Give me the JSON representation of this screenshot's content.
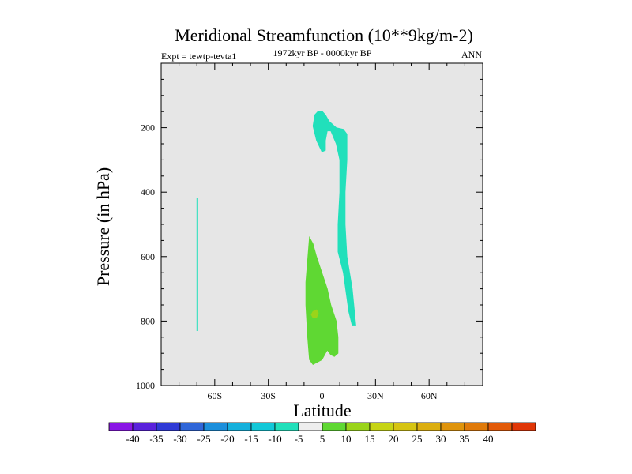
{
  "chart_data": {
    "type": "contour",
    "title": "Meridional Streamfunction (10**9kg/m-2)",
    "subtitle": "1972kyr BP - 0000kyr BP",
    "left_label": "Expt = tewtp-tevta1",
    "right_label": "ANN",
    "xlabel": "Latitude",
    "ylabel": "Pressure (in hPa)",
    "xlim": [
      -90,
      90
    ],
    "ylim": [
      1000,
      0
    ],
    "x_ticks": [
      {
        "value": -60,
        "label": "60S"
      },
      {
        "value": -30,
        "label": "30S"
      },
      {
        "value": 0,
        "label": "0"
      },
      {
        "value": 30,
        "label": "30N"
      },
      {
        "value": 60,
        "label": "60N"
      }
    ],
    "y_ticks": [
      {
        "value": 200,
        "label": "200"
      },
      {
        "value": 400,
        "label": "400"
      },
      {
        "value": 600,
        "label": "600"
      },
      {
        "value": 800,
        "label": "800"
      },
      {
        "value": 1000,
        "label": "1000"
      }
    ],
    "background_color": "#e6e6e6",
    "regions": [
      {
        "name": "negative-cell-upper",
        "level": "-10 to -5",
        "color": "#21e0bb",
        "points": [
          [
            -5,
            195
          ],
          [
            -4,
            160
          ],
          [
            -2,
            148
          ],
          [
            0,
            148
          ],
          [
            2,
            160
          ],
          [
            4,
            180
          ],
          [
            8,
            200
          ],
          [
            12,
            205
          ],
          [
            14,
            220
          ],
          [
            14,
            300
          ],
          [
            13,
            400
          ],
          [
            13,
            500
          ],
          [
            14,
            600
          ],
          [
            17,
            700
          ],
          [
            19,
            815
          ],
          [
            17,
            815
          ],
          [
            15,
            770
          ],
          [
            12,
            650
          ],
          [
            9,
            585
          ],
          [
            9,
            500
          ],
          [
            10,
            400
          ],
          [
            10,
            300
          ],
          [
            8,
            250
          ],
          [
            5,
            210
          ],
          [
            3,
            210
          ],
          [
            2,
            240
          ],
          [
            2,
            270
          ],
          [
            0,
            275
          ],
          [
            -3,
            240
          ]
        ]
      },
      {
        "name": "negative-cell-south-strip",
        "level": "-10 to -5",
        "color": "#21e0bb",
        "points": [
          [
            -70,
            420
          ],
          [
            -69.5,
            420
          ],
          [
            -69.5,
            830
          ],
          [
            -70,
            830
          ]
        ]
      },
      {
        "name": "positive-cell-lower",
        "level": "5 to 10",
        "color": "#5fd833",
        "points": [
          [
            -7,
            540
          ],
          [
            -5,
            560
          ],
          [
            -3,
            600
          ],
          [
            0,
            650
          ],
          [
            3,
            700
          ],
          [
            5,
            750
          ],
          [
            8,
            800
          ],
          [
            9,
            850
          ],
          [
            9,
            900
          ],
          [
            7,
            910
          ],
          [
            5,
            905
          ],
          [
            3,
            890
          ],
          [
            0,
            920
          ],
          [
            -5,
            935
          ],
          [
            -7,
            920
          ],
          [
            -8,
            850
          ],
          [
            -9,
            750
          ],
          [
            -9,
            680
          ]
        ]
      },
      {
        "name": "positive-core",
        "level": "10 to 15",
        "color": "#9ad41a",
        "points": [
          [
            -5,
            770
          ],
          [
            -3,
            765
          ],
          [
            -2,
            775
          ],
          [
            -3,
            790
          ],
          [
            -5,
            790
          ],
          [
            -6,
            780
          ]
        ]
      }
    ],
    "colorbar": {
      "colors": [
        "#8a16e6",
        "#5a22dc",
        "#2f3ad6",
        "#2f66d8",
        "#1b8fdc",
        "#14b0dc",
        "#12c8d8",
        "#21e0bb",
        "#eeeeee",
        "#5fd833",
        "#9ad41a",
        "#c6d415",
        "#d6c412",
        "#dcae0f",
        "#df940c",
        "#e07a0a",
        "#e25a08",
        "#e03606"
      ],
      "labels": [
        "-40",
        "-35",
        "-30",
        "-25",
        "-20",
        "-15",
        "-10",
        "-5",
        "5",
        "10",
        "15",
        "20",
        "25",
        "30",
        "35",
        "40"
      ]
    }
  }
}
